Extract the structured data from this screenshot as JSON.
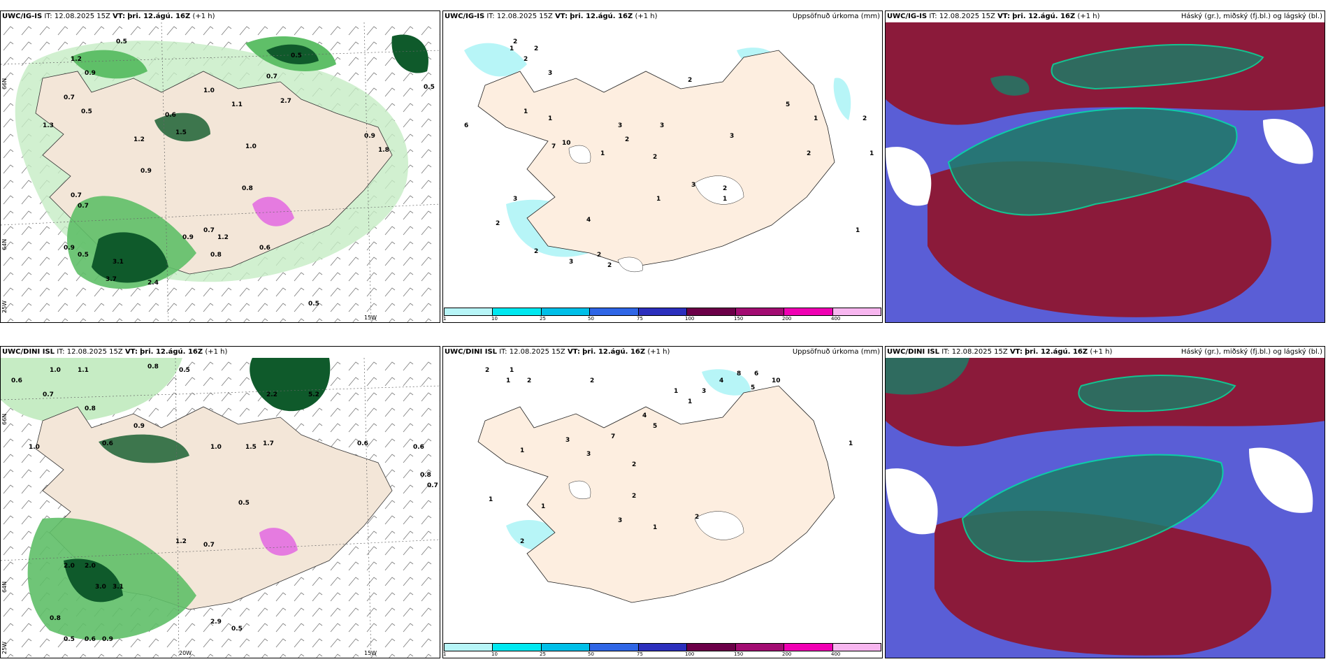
{
  "rows": [
    {
      "model": "UWC/IG-IS",
      "it_label": "IT:",
      "it_value": "12.08.2025 15Z",
      "vt_label": "VT:",
      "vt_value": "þri. 12.ágú. 16Z",
      "lead": "(+1 h)"
    },
    {
      "model": "UWC/DINI ISL",
      "it_label": "IT:",
      "it_value": "12.08.2025 15Z",
      "vt_label": "VT:",
      "vt_value": "þri. 12.ágú. 16Z",
      "lead": "(+1 h)"
    }
  ],
  "accum_title": "Uppsöfnuð úrkoma (mm)",
  "cloud_title": "Háský (gr.), miðský (fj.bl.) og lágský (bl.)",
  "legend": {
    "colors": [
      "#b7f5f7",
      "#00e8f0",
      "#00bfe8",
      "#2f66e6",
      "#2c2fbd",
      "#6b0048",
      "#a20c72",
      "#f000b3",
      "#f7b6ef"
    ],
    "ticks": [
      "1",
      "10",
      "25",
      "50",
      "75",
      "100",
      "150",
      "200",
      "400"
    ]
  },
  "axis": {
    "lat66": "66N",
    "lat64": "64N",
    "lon25": "25W",
    "lon20": "20W",
    "lon15": "15W"
  },
  "colors": {
    "land": "#f3e6d8",
    "land_accum": "#fdeee0",
    "green_light": "#c6ecc4",
    "green_mid": "#5fbf68",
    "green_dark": "#0f5a2b",
    "cyan": "#b7f5f7",
    "magenta": "#e57be0",
    "cloud_blue": "#5a5ed6",
    "cloud_red": "#8b1a3a",
    "cloud_teal": "#1f7a66"
  },
  "precip_labels_a": [
    "0.5",
    "1.2",
    "0.9",
    "1.3",
    "0.7",
    "0.5",
    "1.2",
    "0.9",
    "1.5",
    "0.6",
    "1.0",
    "1.1",
    "0.7",
    "0.5",
    "2.7",
    "0.5",
    "3.7",
    "2.4",
    "0.9",
    "0.7",
    "0.5",
    "1.0",
    "0.9",
    "0.8",
    "1.2",
    "0.7",
    "1.8",
    "0.9",
    "3.1",
    "0.7",
    "0.5",
    "0.8",
    "0.6"
  ],
  "precip_labels_b": [
    "1.0",
    "0.6",
    "1.1",
    "0.8",
    "0.5",
    "0.7",
    "1.0",
    "0.6",
    "0.9",
    "2.2",
    "5.2",
    "1.5",
    "0.8",
    "3.0",
    "3.1",
    "2.0",
    "2.0",
    "0.8",
    "0.5",
    "0.6",
    "0.9",
    "0.7",
    "1.2",
    "0.6",
    "0.5",
    "1.0",
    "1.7",
    "0.8",
    "0.6",
    "0.7",
    "2.9",
    "0.5"
  ],
  "accum_labels_a": [
    "1",
    "2",
    "2",
    "2",
    "3",
    "2",
    "6",
    "1",
    "1",
    "3",
    "3",
    "2",
    "7",
    "10",
    "1",
    "2",
    "3",
    "2",
    "1",
    "3",
    "4",
    "2",
    "2",
    "3",
    "2",
    "3",
    "1",
    "2",
    "1",
    "5",
    "1",
    "2",
    "1",
    "2"
  ],
  "accum_labels_b": [
    "1",
    "2",
    "2",
    "4",
    "8",
    "3",
    "5",
    "10",
    "6",
    "5",
    "4",
    "3",
    "7",
    "1",
    "1",
    "1",
    "2",
    "2",
    "1",
    "1",
    "3",
    "2",
    "1",
    "3",
    "1",
    "2",
    "2",
    "1"
  ]
}
